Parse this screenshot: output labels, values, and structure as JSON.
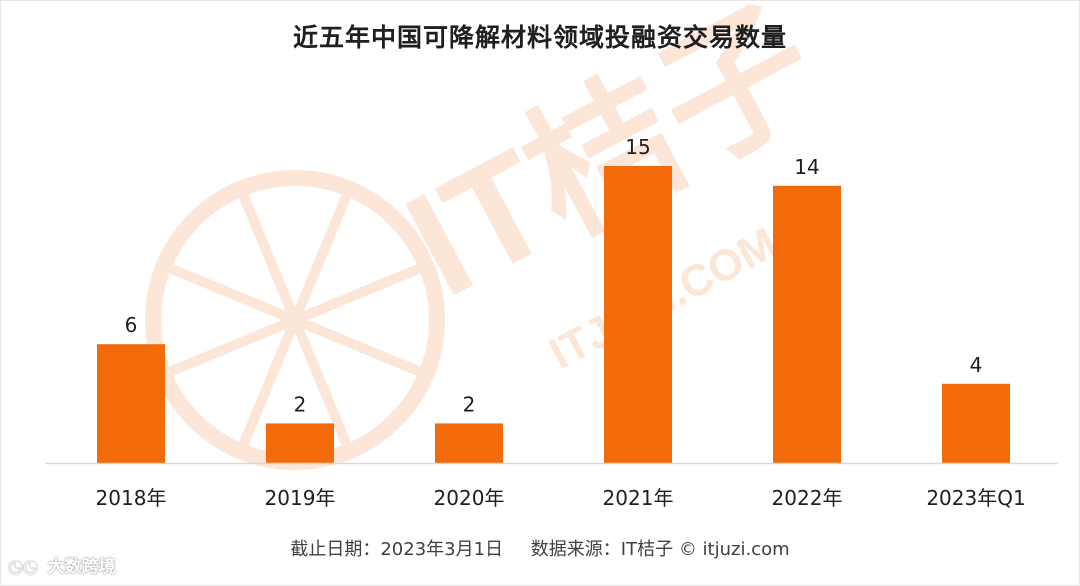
{
  "colors": {
    "bar": "#f26a0a",
    "watermark": "#fbe4d3",
    "axis": "#d9d9d9",
    "text": "#1f1f1f"
  },
  "watermark": {
    "brand": "IT桔子",
    "site": "ITJUZI.COM",
    "icon": "orange-slice-logo"
  },
  "footer": {
    "date_note": "截止日期：2023年3月1日",
    "source": "数据来源：IT桔子 © itjuzi.com"
  },
  "overlay": {
    "account": "大数跨境",
    "icon": "wechat-icon"
  },
  "chart_data": {
    "type": "bar",
    "title": "近五年中国可降解材料领域投融资交易数量",
    "xlabel": "",
    "ylabel": "",
    "categories": [
      "2018年",
      "2019年",
      "2020年",
      "2021年",
      "2022年",
      "2023年Q1"
    ],
    "values": [
      6,
      2,
      2,
      15,
      14,
      4
    ],
    "data_labels": [
      "6",
      "2",
      "2",
      "15",
      "14",
      "4"
    ],
    "ylim": [
      0,
      15
    ],
    "grid": false,
    "legend": "none"
  }
}
